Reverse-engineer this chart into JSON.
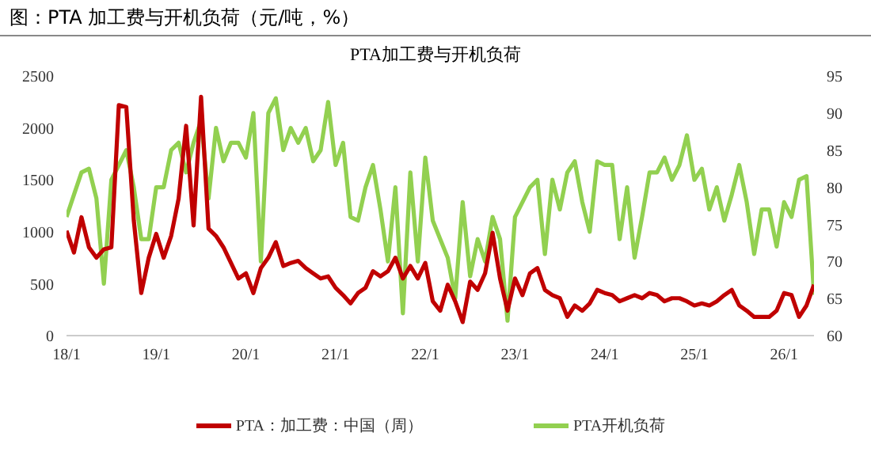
{
  "chart_data": {
    "type": "line",
    "title": "图：PTA 加工费与开机负荷（元/吨，%）",
    "subtitle": "PTA加工费与开机负荷",
    "categories": [
      "18/1",
      null,
      null,
      null,
      null,
      null,
      null,
      null,
      null,
      null,
      null,
      null,
      "19/1",
      null,
      null,
      null,
      null,
      null,
      null,
      null,
      null,
      null,
      null,
      null,
      "20/1",
      null,
      null,
      null,
      null,
      null,
      null,
      null,
      null,
      null,
      null,
      null,
      "21/1",
      null,
      null,
      null,
      null,
      null,
      null,
      null,
      null,
      null,
      null,
      null,
      "22/1",
      null,
      null,
      null,
      null,
      null,
      null,
      null,
      null,
      null,
      null,
      null,
      "23/1",
      null,
      null,
      null,
      null,
      null,
      null,
      null,
      null,
      null,
      null,
      null,
      "24/1",
      null,
      null,
      null,
      null,
      null,
      null,
      null,
      null,
      null,
      null,
      null,
      "25/1",
      null,
      null,
      null,
      null,
      null,
      null,
      null,
      null,
      null,
      null,
      null,
      "26/1",
      null,
      null,
      null,
      null
    ],
    "series": [
      {
        "name": "PTA：加工费：中国（周）",
        "color": "#c00000",
        "values": [
          1010,
          800,
          1140,
          850,
          750,
          830,
          850,
          2220,
          2200,
          1110,
          410,
          750,
          980,
          750,
          960,
          1320,
          2020,
          1060,
          2300,
          1030,
          960,
          850,
          700,
          550,
          600,
          410,
          650,
          750,
          900,
          670,
          700,
          720,
          650,
          600,
          550,
          570,
          460,
          390,
          310,
          410,
          460,
          620,
          570,
          620,
          750,
          550,
          670,
          550,
          700,
          330,
          240,
          490,
          330,
          130,
          520,
          440,
          600,
          990,
          550,
          240,
          550,
          390,
          600,
          650,
          440,
          390,
          360,
          180,
          290,
          240,
          310,
          440,
          410,
          390,
          330,
          360,
          390,
          360,
          410,
          390,
          330,
          360,
          360,
          330,
          290,
          310,
          290,
          330,
          390,
          440,
          290,
          240,
          180,
          180,
          180,
          240,
          410,
          390,
          180,
          290,
          490
        ]
      },
      {
        "name": "PTA开机负荷",
        "color": "#92d050",
        "axis": "y2",
        "values": [
          76,
          79,
          82,
          82.5,
          78.5,
          67,
          81,
          83,
          85,
          80,
          73,
          73,
          80,
          80,
          85,
          86,
          82,
          86,
          89,
          78.5,
          88,
          83.5,
          86,
          86,
          84,
          90,
          70,
          90,
          92,
          85,
          88,
          86,
          88,
          83.5,
          85,
          91.5,
          83,
          86,
          76,
          75.5,
          80,
          83,
          77,
          70,
          80,
          63,
          82,
          70,
          84,
          75.5,
          73,
          70.5,
          65,
          78,
          68,
          73,
          70,
          76,
          73,
          62,
          76,
          78,
          80,
          81,
          71,
          81,
          77,
          82,
          83.5,
          78,
          74,
          83.5,
          83,
          83,
          73,
          80,
          70.5,
          76,
          82,
          82,
          84,
          81,
          83,
          87,
          81,
          82.5,
          77,
          80,
          75.5,
          79,
          83,
          78,
          71,
          77,
          77,
          72,
          78,
          76,
          81,
          81.5,
          65.5
        ]
      }
    ],
    "ylim": [
      0,
      2500
    ],
    "yticks": [
      0,
      500,
      1000,
      1500,
      2000,
      2500
    ],
    "y2lim": [
      60,
      95
    ],
    "y2ticks": [
      60,
      65,
      70,
      75,
      80,
      85,
      90,
      95
    ],
    "grid": false,
    "legend": "bottom",
    "marker": "none",
    "line_style": "solid"
  }
}
